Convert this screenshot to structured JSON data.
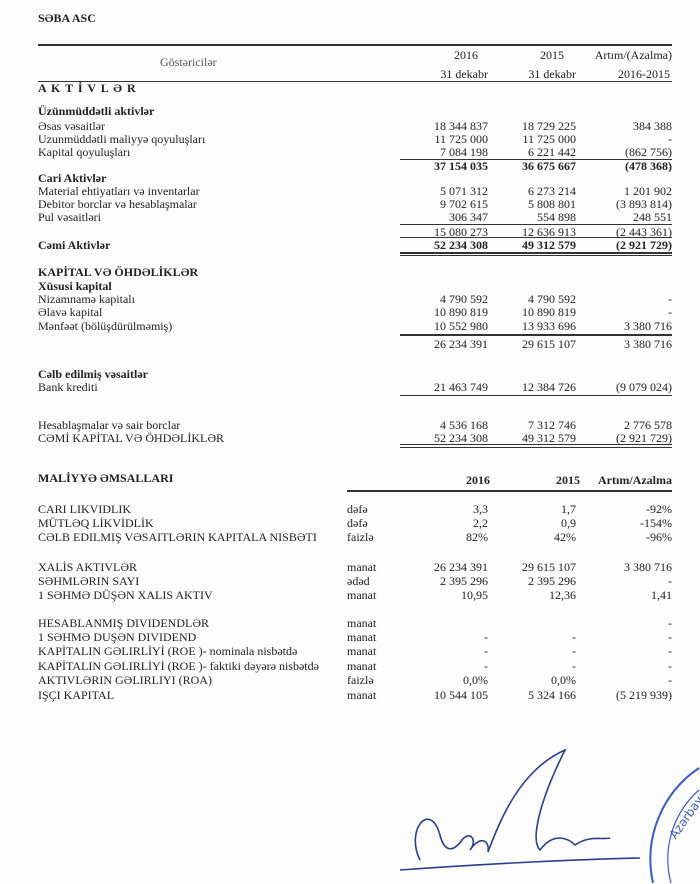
{
  "company": "SƏBA ASC",
  "header": {
    "indicator": "Göstəricilər",
    "col1_year": "2016",
    "col1_date": "31 dekabr",
    "col2_year": "2015",
    "col2_date": "31 dekabr",
    "col3_title": "Artım/(Azalma)",
    "col3_period": "2016-2015"
  },
  "balance_rows": [
    {
      "label": "A K T İ V L Ə R",
      "bold": true
    },
    {
      "label": "Üzünmüddətli aktivlər",
      "bold": true
    },
    {
      "label": "Əsas vəsaitlər",
      "v2016": "18 344 837",
      "v2015": "18 729 225",
      "diff": "384 388"
    },
    {
      "label": "Uzunmüddətli maliyyə qoyuluşları",
      "v2016": "11 725 000",
      "v2015": "11 725 000",
      "diff": "-"
    },
    {
      "label": "Kapital qoyuluşları",
      "v2016": "7 084 198",
      "v2015": "6 221 442",
      "diff": "(862 756)"
    },
    {
      "label": "",
      "v2016": "37 154 035",
      "v2015": "36 675 667",
      "diff": "(478 368)",
      "bold": true
    },
    {
      "label": "Cari Aktivlər",
      "bold": true
    },
    {
      "label": "Material ehtiyatları və inventarlar",
      "v2016": "5 071 312",
      "v2015": "6 273 214",
      "diff": "1 201 902"
    },
    {
      "label": "Debitor borclar və hesablaşmalar",
      "v2016": "9 702 615",
      "v2015": "5 808 801",
      "diff": "(3 893 814)"
    },
    {
      "label": "Pul vəsaitləri",
      "v2016": "306 347",
      "v2015": "554 898",
      "diff": "248 551"
    },
    {
      "label": "",
      "v2016": "15 080 273",
      "v2015": "12 636 913",
      "diff": "(2 443 361)"
    },
    {
      "label": "Cəmi Aktivlər",
      "v2016": "52 234 308",
      "v2015": "49 312 579",
      "diff": "(2 921 729)",
      "bold": true
    },
    {
      "label": "KAPİTAL VƏ ÖHDƏLİKLƏR",
      "bold": true
    },
    {
      "label": "Xüsusi kapital",
      "bold": true
    },
    {
      "label": "Nizamnamə kapitalı",
      "v2016": "4 790 592",
      "v2015": "4 790 592",
      "diff": "-"
    },
    {
      "label": "Əlavə kapital",
      "v2016": "10 890 819",
      "v2015": "10 890 819",
      "diff": "-"
    },
    {
      "label": "Mənfəət (bölüşdürülməmiş)",
      "v2016": "10 552 980",
      "v2015": "13 933 696",
      "diff": "3 380 716"
    },
    {
      "label": "",
      "v2016": "26 234 391",
      "v2015": "29 615 107",
      "diff": "3 380 716"
    },
    {
      "label": "Cəlb edilmiş vəsaitlər",
      "bold": true
    },
    {
      "label": "Bank krediti",
      "v2016": "21 463 749",
      "v2015": "12 384 726",
      "diff": "(9 079 024)"
    },
    {
      "label": "Hesablaşmalar və sair borclar",
      "v2016": "4 536 168",
      "v2015": "7 312 746",
      "diff": "2 776 578"
    },
    {
      "label": "CƏMİ KAPİTAL VƏ ÖHDƏLİKLƏR",
      "v2016": "52 234 308",
      "v2015": "49 312 579",
      "diff": "(2 921 729)"
    }
  ],
  "ratios": {
    "title": "MALİYYƏ ƏMSALLARI",
    "col1": "2016",
    "col2": "2015",
    "col3": "Artım/Azalma",
    "rows": [
      {
        "label": "CARI LIKVIDLIK",
        "unit": "dəfə",
        "v2016": "3,3",
        "v2015": "1,7",
        "diff": "-92%"
      },
      {
        "label": "MÜTLƏQ LİKVİDLİK",
        "unit": "dəfə",
        "v2016": "2,2",
        "v2015": "0,9",
        "diff": "-154%"
      },
      {
        "label": "CƏLB EDILMIŞ VƏSAITLƏRIN KAPITALA NISBƏTI",
        "unit": "faizlə",
        "v2016": "82%",
        "v2015": "42%",
        "diff": "-96%"
      },
      {
        "label": "XALİS AKTIVLƏR",
        "unit": "manat",
        "v2016": "26 234 391",
        "v2015": "29 615 107",
        "diff": "3 380 716"
      },
      {
        "label": "SƏHMLƏRIN SAYI",
        "unit": "ədəd",
        "v2016": "2 395 296",
        "v2015": "2 395 296",
        "diff": "-"
      },
      {
        "label": "1 SƏHMƏ DÜŞƏN XALIS AKTIV",
        "unit": "manat",
        "v2016": "10,95",
        "v2015": "12,36",
        "diff": "1,41"
      },
      {
        "label": "HESABLANMIŞ DIVIDENDLƏR",
        "unit": "manat",
        "v2016": "",
        "v2015": "",
        "diff": "-"
      },
      {
        "label": "1 SƏHMƏ DUŞƏN DIVIDEND",
        "unit": "manat",
        "v2016": "-",
        "v2015": "-",
        "diff": "-"
      },
      {
        "label": "KAPİTALIN GƏLIRLİYİ (ROE )- nominala nisbətdə",
        "unit": "manat",
        "v2016": "-",
        "v2015": "-",
        "diff": "-"
      },
      {
        "label": "KAPİTALIN GƏLIRLİYİ (ROE )- faktiki dəyərə nisbətdə",
        "unit": "manat",
        "v2016": "-",
        "v2015": "-",
        "diff": "-"
      },
      {
        "label": "AKTIVLƏRIN GƏLIRLIYI (ROA)",
        "unit": "faizlə",
        "v2016": "0,0%",
        "v2015": "0,0%",
        "diff": "-"
      },
      {
        "label": "IŞÇI KAPITAL",
        "unit": "manat",
        "v2016": "10 544 105",
        "v2015": "5 324 166",
        "diff": "(5 219 939)"
      }
    ]
  },
  "stamp_text": "Azərbaycan \"FCHA\""
}
